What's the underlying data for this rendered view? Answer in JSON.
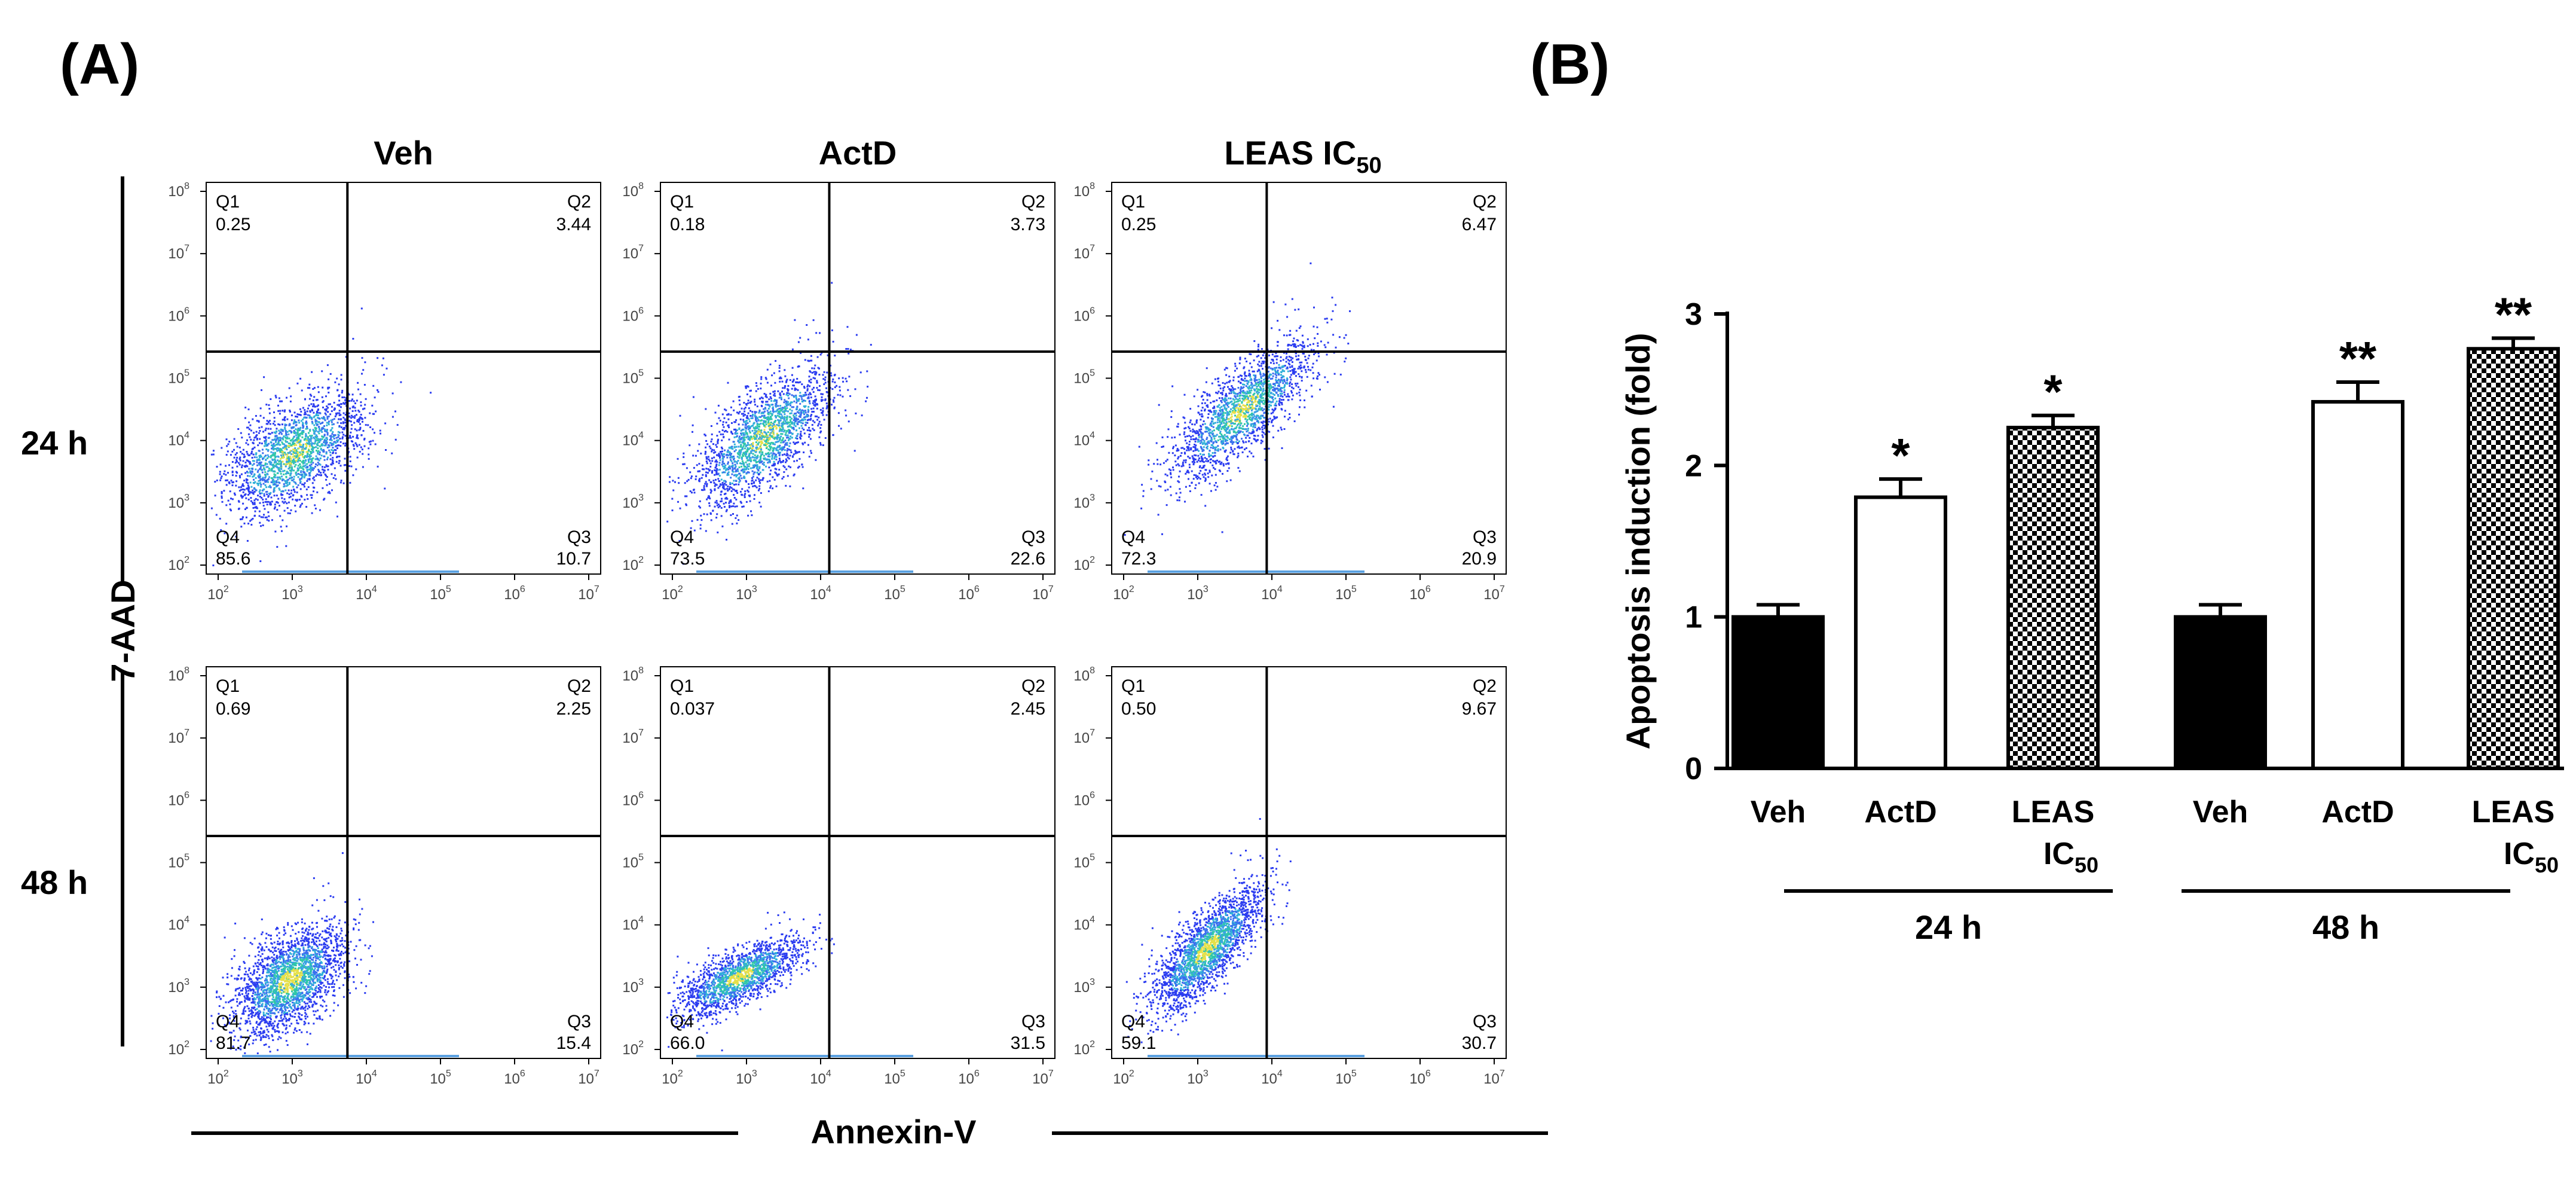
{
  "panels": {
    "a": "(A)",
    "b": "(B)"
  },
  "flow": {
    "columns": [
      "Veh",
      "ActD",
      "LEAS IC"
    ],
    "col_sub": [
      "",
      "",
      "50"
    ],
    "rows": [
      "24 h",
      "48 h"
    ],
    "y_axis_label": "7-AAD",
    "x_axis_label": "Annexin-V",
    "x_ticks": [
      "2",
      "3",
      "4",
      "5",
      "6",
      "7"
    ],
    "y_ticks": [
      "8",
      "7",
      "6",
      "5",
      "4",
      "3",
      "2"
    ],
    "tick_base": "10",
    "plots": [
      {
        "name": "24h-veh",
        "q1": "0.25",
        "q2": "3.44",
        "q3": "10.7",
        "q4": "85.6"
      },
      {
        "name": "24h-actd",
        "q1": "0.18",
        "q2": "3.73",
        "q3": "22.6",
        "q4": "73.5"
      },
      {
        "name": "24h-leas",
        "q1": "0.25",
        "q2": "6.47",
        "q3": "20.9",
        "q4": "72.3"
      },
      {
        "name": "48h-veh",
        "q1": "0.69",
        "q2": "2.25",
        "q3": "15.4",
        "q4": "81.7"
      },
      {
        "name": "48h-actd",
        "q1": "0.037",
        "q2": "2.45",
        "q3": "31.5",
        "q4": "66.0"
      },
      {
        "name": "48h-leas",
        "q1": "0.50",
        "q2": "9.67",
        "q3": "30.7",
        "q4": "59.1"
      }
    ]
  },
  "chart_data": {
    "type": "bar",
    "ylabel": "Apoptosis induction (fold)",
    "ylim": [
      0,
      3
    ],
    "yticks": [
      "0",
      "1",
      "2",
      "3"
    ],
    "bars": [
      {
        "label": "Veh",
        "value": 1.0,
        "err": 0.08,
        "fill": "black",
        "sig": ""
      },
      {
        "label": "ActD",
        "value": 1.79,
        "err": 0.12,
        "fill": "white",
        "sig": "*"
      },
      {
        "label": "LEAS",
        "label2": "IC",
        "sub": "50",
        "value": 2.25,
        "err": 0.08,
        "fill": "checker",
        "sig": "*"
      },
      {
        "label": "Veh",
        "value": 1.0,
        "err": 0.08,
        "fill": "black",
        "sig": ""
      },
      {
        "label": "ActD",
        "value": 2.42,
        "err": 0.13,
        "fill": "white",
        "sig": "**"
      },
      {
        "label": "LEAS",
        "label2": "IC",
        "sub": "50",
        "value": 2.77,
        "err": 0.07,
        "fill": "checker",
        "sig": "**"
      }
    ],
    "groups": [
      "24 h",
      "48 h"
    ]
  }
}
